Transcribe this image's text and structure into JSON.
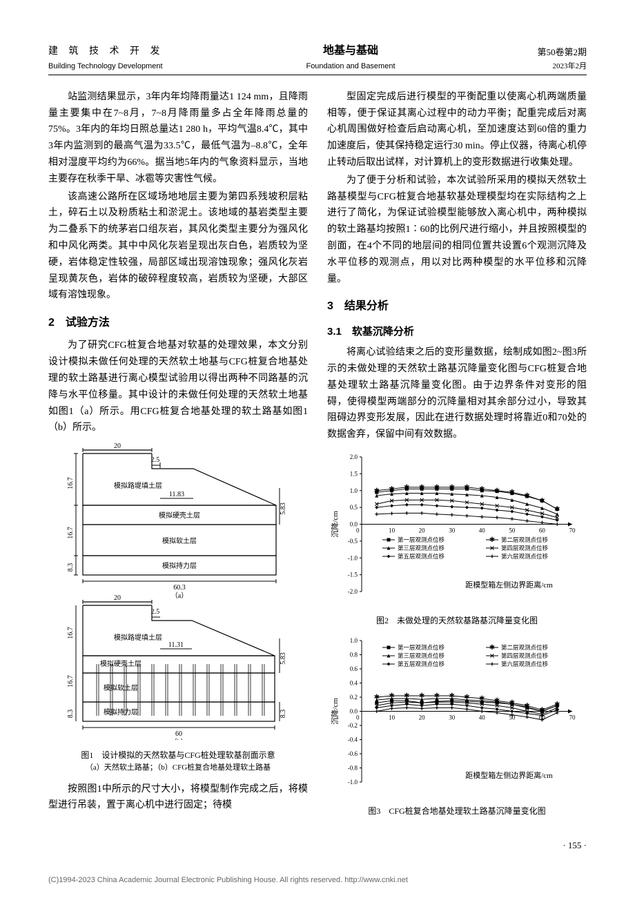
{
  "header": {
    "left_cn": "建 筑 技 术 开 发",
    "left_en": "Building Technology Development",
    "center_cn": "地基与基础",
    "center_en": "Foundation and Basement",
    "right_vol": "第50卷第2期",
    "right_date": "2023年2月"
  },
  "left_col": {
    "p1": "站监测结果显示，3年内年均降雨量达1 124 mm，且降雨量主要集中在7~8月，7~8月降雨量多占全年降雨总量的75%。3年内的年均日照总量达1 280 h，平均气温8.4℃，其中3年内监测到的最高气温为33.5℃，最低气温为–8.8℃，全年相对湿度平均约为66%。据当地5年内的气象资料显示，当地主要存在秋季干旱、冰雹等灾害性气候。",
    "p2": "该高速公路所在区域场地地层主要为第四系残坡积层粘土，碎石土以及粉质粘土和淤泥土。该地域的基岩类型主要为二叠系下的统茅岩口组灰岩，其风化类型主要分为强风化和中风化两类。其中中风化灰岩呈现出灰白色，岩质较为坚硬，岩体稳定性较强，局部区域出现溶蚀现象；强风化灰岩呈现黄灰色，岩体的破碎程度较高，岩质较为坚硬，大部区域有溶蚀现象。",
    "h2": "2　试验方法",
    "p3": "为了研究CFG桩复合地基对软基的处理效果，本文分别设计模拟未做任何处理的天然软土地基与CFG桩复合地基处理的软土路基进行离心模型试验用以得出两种不同路基的沉降与水平位移量。其中设计的未做任何处理的天然软土地基如图1（a）所示。用CFG桩复合地基处理的软土路基如图1（b）所示。",
    "fig1_caption": "图1　设计模拟的天然软基与CFG桩处理软基剖面示意",
    "fig1_sub": "（a）天然软土路基；（b）CFG桩复合地基处理软土路基",
    "p4": "按照图1中所示的尺寸大小，将模型制作完成之后，将模型进行吊装，置于离心机中进行固定；待模",
    "diagram_a": {
      "top_width": "20",
      "slope_top": "2.5",
      "slope_bottom": "11.83",
      "right_height": "5.83",
      "left_h1": "16.7",
      "left_h2": "16.7",
      "left_h3": "8.3",
      "bottom_width": "60.3",
      "layers": [
        "模拟路堤填土层",
        "模拟硬壳土层",
        "模拟软土层",
        "模拟持力层"
      ],
      "label": "（a）"
    },
    "diagram_b": {
      "top_width": "20",
      "slope_top": "2.5",
      "slope_bottom": "11.31",
      "right_height": "5.83",
      "left_h1": "16.7",
      "left_h2": "16.7",
      "left_h3": "8.3",
      "right_h3": "8.3",
      "bottom_width": "60",
      "layers": [
        "模拟路堤填土层",
        "模拟硬壳土层",
        "模拟软土层",
        "模拟持力层"
      ],
      "label": "（b）"
    }
  },
  "right_col": {
    "p1": "型固定完成后进行模型的平衡配重以使离心机两端质量相等，便于保证其离心过程中的动力平衡；配重完成后对离心机周围做好检查后启动离心机，至加速度达到60倍的重力加速度后，使其保持稳定运行30 min。停止仪器，待离心机停止转动后取出试样，对计算机上的变形数据进行收集处理。",
    "p2": "为了便于分析和试验，本次试验所采用的模拟天然软土路基模型与CFG桩复合地基软基处理模型均在实际结构之上进行了简化，为保证试验模型能够放入离心机中，两种模拟的软土路基均按照1∶60的比例尺进行缩小，并且按照模型的剖面，在4个不同的地层间的相同位置共设置6个观测沉降及水平位移的观测点，用以对比两种模型的水平位移和沉降量。",
    "h2": "3　结果分析",
    "h3": "3.1　软基沉降分析",
    "p3": "将离心试验结束之后的变形量数据，绘制成如图2~图3所示的未做处理的天然软土路基沉降量变化图与CFG桩复合地基处理软土路基沉降量变化图。由于边界条件对变形的阻碍，使得模型两端部分的沉降量相对其余部分过小，导致其阻碍边界变形发展，因此在进行数据处理时将靠近0和70处的数据舍弃，保留中间有效数据。",
    "fig2_caption": "图2　未做处理的天然软基路基沉降量变化图",
    "fig3_caption": "图3　CFG桩复合地基处理软土路基沉降量变化图",
    "chart2": {
      "type": "line",
      "ylabel": "沉降/cm",
      "xlabel": "距模型箱左侧边界距离/cm",
      "xlim": [
        0,
        70
      ],
      "xtick_step": 10,
      "ylim": [
        -2.0,
        2.0
      ],
      "ytick_step": 0.5,
      "legend": [
        "第一层观测点位移",
        "第二层观测点位移",
        "第三层观测点位移",
        "第四层观测点位移",
        "第五层观测点位移",
        "第六层观测点位移"
      ],
      "colors": [
        "#000000",
        "#000000",
        "#000000",
        "#000000",
        "#000000",
        "#000000"
      ],
      "markers": [
        "square",
        "star",
        "triangle",
        "x",
        "diamond",
        "plus"
      ],
      "x_values": [
        5,
        10,
        15,
        20,
        25,
        30,
        35,
        40,
        45,
        50,
        55,
        60,
        65
      ],
      "series": [
        [
          0.95,
          1.0,
          1.05,
          1.05,
          1.05,
          1.05,
          1.05,
          1.0,
          0.98,
          0.92,
          0.83,
          0.7,
          0.45
        ],
        [
          1.0,
          1.05,
          1.1,
          1.1,
          1.1,
          1.1,
          1.1,
          1.05,
          1.0,
          0.95,
          0.85,
          0.7,
          0.45
        ],
        [
          0.85,
          0.9,
          0.92,
          0.92,
          0.92,
          0.9,
          0.88,
          0.85,
          0.8,
          0.72,
          0.6,
          0.48,
          0.3
        ],
        [
          0.6,
          0.7,
          0.72,
          0.72,
          0.72,
          0.7,
          0.65,
          0.6,
          0.55,
          0.5,
          0.42,
          0.32,
          0.2
        ],
        [
          0.5,
          0.55,
          0.58,
          0.58,
          0.55,
          0.52,
          0.5,
          0.48,
          0.42,
          0.38,
          0.3,
          0.22,
          0.12
        ],
        [
          0.3,
          0.32,
          0.33,
          0.33,
          0.3,
          0.28,
          0.25,
          0.22,
          0.2,
          0.16,
          0.1,
          0.05,
          0.0
        ]
      ]
    },
    "chart3": {
      "type": "line",
      "ylabel": "沉降/cm",
      "xlabel": "距模型箱左侧边界距离/cm",
      "xlim": [
        0,
        70
      ],
      "xtick_step": 10,
      "ylim": [
        -1.0,
        1.0
      ],
      "ytick_step": 0.2,
      "legend": [
        "第一层观测点位移",
        "第二层观测点位移",
        "第三层观测点位移",
        "第四层观测点位移",
        "第五层观测点位移",
        "第六层观测点位移"
      ],
      "x_values": [
        5,
        10,
        15,
        20,
        25,
        30,
        35,
        40,
        45,
        50,
        55,
        60,
        65
      ],
      "series": [
        [
          0.12,
          0.15,
          0.15,
          0.12,
          0.14,
          0.15,
          0.14,
          0.13,
          0.12,
          0.1,
          0.05,
          0.0,
          0.08
        ],
        [
          0.2,
          0.22,
          0.22,
          0.22,
          0.22,
          0.22,
          0.2,
          0.18,
          0.15,
          0.12,
          0.08,
          0.02,
          0.1
        ],
        [
          0.16,
          0.18,
          0.18,
          0.17,
          0.18,
          0.18,
          0.16,
          0.15,
          0.13,
          0.1,
          0.06,
          0.0,
          0.08
        ],
        [
          0.08,
          0.12,
          0.13,
          0.12,
          0.13,
          0.13,
          0.12,
          0.1,
          0.08,
          0.05,
          0.0,
          -0.04,
          0.05
        ],
        [
          0.05,
          0.08,
          0.1,
          0.08,
          0.1,
          0.1,
          0.08,
          0.05,
          0.03,
          0.0,
          -0.03,
          -0.06,
          0.02
        ],
        [
          0.0,
          0.04,
          0.05,
          0.04,
          0.05,
          0.05,
          0.03,
          0.0,
          -0.02,
          -0.05,
          -0.08,
          -0.12,
          -0.02
        ]
      ]
    }
  },
  "page_number": "· 155 ·",
  "footer": "(C)1994-2023 China Academic Journal Electronic Publishing House. All rights reserved.    http://www.cnki.net"
}
